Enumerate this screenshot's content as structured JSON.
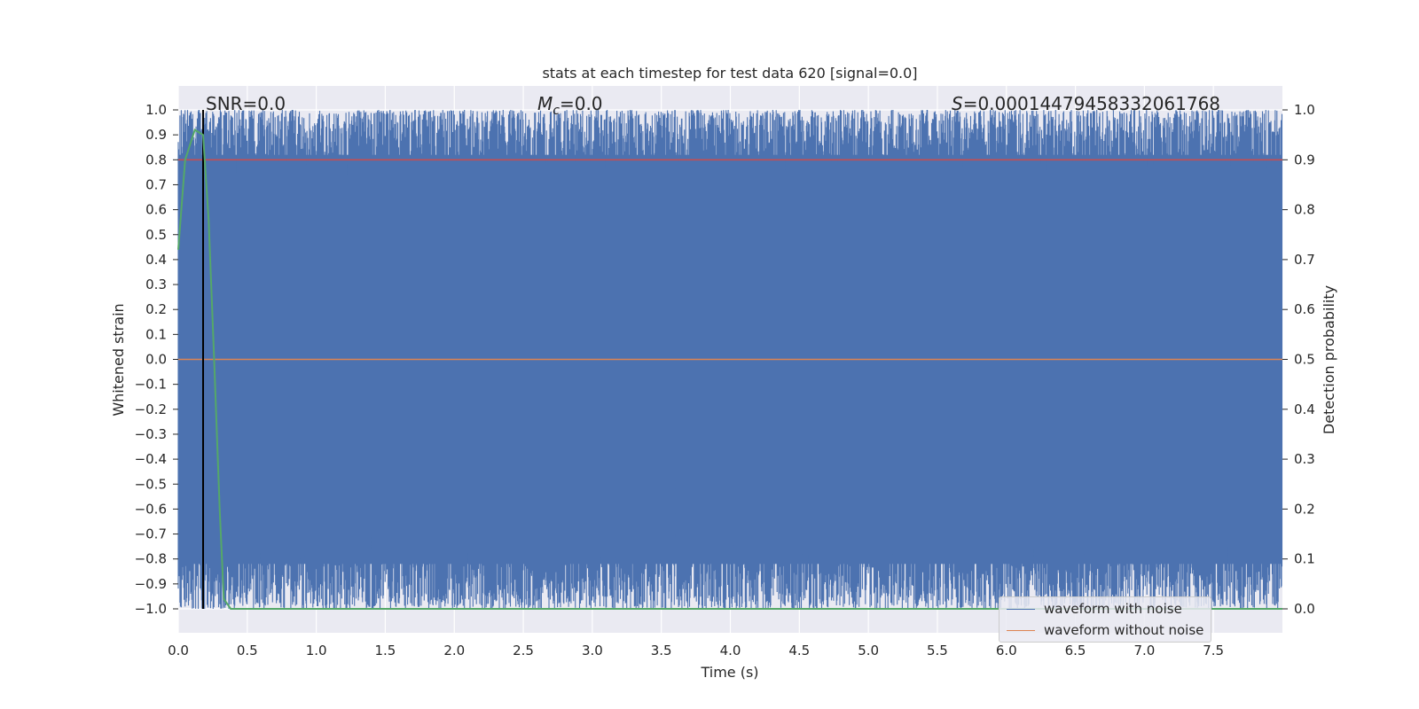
{
  "chart_data": {
    "type": "line",
    "title": "stats at each timestep for test data 620 [signal=0.0]",
    "xlabel": "Time (s)",
    "ylabel_left": "Whitened strain",
    "ylabel_right": "Detection probability",
    "xlim": [
      0.0,
      8.0
    ],
    "ylim_left": [
      -1.0,
      1.0
    ],
    "ylim_right": [
      0.0,
      1.0
    ],
    "x_ticks": [
      "0.0",
      "0.5",
      "1.0",
      "1.5",
      "2.0",
      "2.5",
      "3.0",
      "3.5",
      "4.0",
      "4.5",
      "5.0",
      "5.5",
      "6.0",
      "6.5",
      "7.0",
      "7.5"
    ],
    "y_left_ticks": [
      "1.0",
      "0.9",
      "0.8",
      "0.7",
      "0.6",
      "0.5",
      "0.4",
      "0.3",
      "0.2",
      "0.1",
      "0.0",
      "−0.1",
      "−0.2",
      "−0.3",
      "−0.4",
      "−0.5",
      "−0.6",
      "−0.7",
      "−0.8",
      "−0.9",
      "−1.0"
    ],
    "y_right_ticks": [
      "1.0",
      "0.9",
      "0.8",
      "0.7",
      "0.6",
      "0.5",
      "0.4",
      "0.3",
      "0.2",
      "0.1",
      "0.0"
    ],
    "grid": true,
    "annotations": {
      "snr": "SNR=0.0",
      "mc_symbol": "M",
      "mc_sub": "c",
      "mc_value": "=0.0",
      "s_symbol": "S",
      "s_value": "=0.00014479458332061768"
    },
    "vertical_marker_x": 0.18,
    "series": [
      {
        "name": "waveform with noise",
        "color": "#4c72b0",
        "description_values": "whitened noise saturating between -1.0 and 1.0 for the whole 0–8 s span"
      },
      {
        "name": "waveform without noise",
        "color": "#dd8452",
        "x": [
          0.0,
          8.0
        ],
        "y": [
          0.0,
          0.0
        ]
      },
      {
        "name": "",
        "axis": "right",
        "color": "#55a868",
        "x": [
          0.0,
          0.05,
          0.12,
          0.18,
          0.22,
          0.26,
          0.3,
          0.33,
          0.38,
          8.0
        ],
        "y": [
          0.72,
          0.9,
          0.96,
          0.95,
          0.78,
          0.5,
          0.2,
          0.02,
          0.0,
          0.0
        ]
      }
    ],
    "overlay_line_y": 0.8,
    "overlay_line_color": "#c44e52",
    "legend_position": "lower right"
  },
  "colors": {
    "axes_bg": "#eaeaf2",
    "grid": "#ffffff",
    "text": "#262626",
    "marker": "#000000"
  }
}
